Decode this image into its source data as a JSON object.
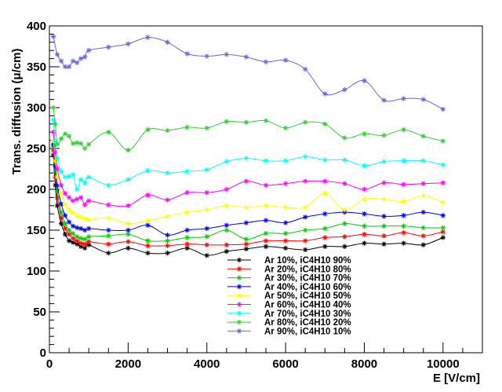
{
  "chart_data": {
    "type": "line",
    "xlabel": "E [V/cm]",
    "ylabel": "Trans. diffusion (μ/cm)",
    "xlim": [
      0,
      11000
    ],
    "ylim": [
      0,
      400
    ],
    "x_ticks": [
      0,
      2000,
      4000,
      6000,
      8000,
      10000
    ],
    "y_ticks": [
      0,
      50,
      100,
      150,
      200,
      250,
      300,
      350,
      400
    ],
    "grid": false,
    "legend_position": "bottom-center",
    "series": [
      {
        "name": "Ar 10%, iC4H10 90%",
        "color": "#000000",
        "points": [
          [
            100,
            242
          ],
          [
            150,
            205
          ],
          [
            200,
            180
          ],
          [
            300,
            158
          ],
          [
            400,
            145
          ],
          [
            500,
            137
          ],
          [
            600,
            135
          ],
          [
            700,
            133
          ],
          [
            800,
            130
          ],
          [
            900,
            128
          ],
          [
            1000,
            132
          ],
          [
            1500,
            122
          ],
          [
            2000,
            128
          ],
          [
            2500,
            122
          ],
          [
            3000,
            122
          ],
          [
            3500,
            128
          ],
          [
            4000,
            119
          ],
          [
            4500,
            124
          ],
          [
            5000,
            127
          ],
          [
            5500,
            130
          ],
          [
            6000,
            128
          ],
          [
            6500,
            126
          ],
          [
            7000,
            130
          ],
          [
            7500,
            130
          ],
          [
            8000,
            134
          ],
          [
            8500,
            133
          ],
          [
            9000,
            134
          ],
          [
            9500,
            132
          ],
          [
            10000,
            141
          ]
        ]
      },
      {
        "name": "Ar 20%, iC4H10 80%",
        "color": "#ff0000",
        "points": [
          [
            100,
            248
          ],
          [
            150,
            215
          ],
          [
            200,
            190
          ],
          [
            300,
            165
          ],
          [
            400,
            152
          ],
          [
            500,
            145
          ],
          [
            600,
            140
          ],
          [
            700,
            137
          ],
          [
            800,
            134
          ],
          [
            900,
            133
          ],
          [
            1000,
            136
          ],
          [
            1500,
            133
          ],
          [
            2000,
            136
          ],
          [
            2500,
            131
          ],
          [
            3000,
            131
          ],
          [
            3500,
            133
          ],
          [
            4000,
            132
          ],
          [
            4500,
            132
          ],
          [
            5000,
            133
          ],
          [
            5500,
            137
          ],
          [
            6000,
            137
          ],
          [
            6500,
            137
          ],
          [
            7000,
            141
          ],
          [
            7500,
            142
          ],
          [
            8000,
            145
          ],
          [
            8500,
            143
          ],
          [
            9000,
            147
          ],
          [
            9500,
            143
          ],
          [
            10000,
            148
          ]
        ]
      },
      {
        "name": "Ar 30%, iC4H10 70%",
        "color": "#00cc00",
        "points": [
          [
            100,
            252
          ],
          [
            150,
            222
          ],
          [
            200,
            197
          ],
          [
            300,
            172
          ],
          [
            400,
            158
          ],
          [
            500,
            150
          ],
          [
            600,
            146
          ],
          [
            700,
            142
          ],
          [
            800,
            140
          ],
          [
            900,
            139
          ],
          [
            1000,
            142
          ],
          [
            1500,
            143
          ],
          [
            2000,
            145
          ],
          [
            2500,
            137
          ],
          [
            3000,
            137
          ],
          [
            3500,
            141
          ],
          [
            4000,
            142
          ],
          [
            4500,
            150
          ],
          [
            5000,
            139
          ],
          [
            5500,
            146
          ],
          [
            6000,
            146
          ],
          [
            6500,
            150
          ],
          [
            7000,
            152
          ],
          [
            7500,
            158
          ],
          [
            8000,
            155
          ],
          [
            8500,
            155
          ],
          [
            9000,
            155
          ],
          [
            9500,
            153
          ],
          [
            10000,
            153
          ]
        ]
      },
      {
        "name": "Ar 40%, iC4H10 60%",
        "color": "#0000ee",
        "points": [
          [
            100,
            255
          ],
          [
            150,
            228
          ],
          [
            200,
            205
          ],
          [
            300,
            182
          ],
          [
            400,
            168
          ],
          [
            500,
            160
          ],
          [
            600,
            155
          ],
          [
            700,
            153
          ],
          [
            800,
            152
          ],
          [
            900,
            150
          ],
          [
            1000,
            152
          ],
          [
            1500,
            150
          ],
          [
            2000,
            150
          ],
          [
            2500,
            156
          ],
          [
            3000,
            144
          ],
          [
            3500,
            150
          ],
          [
            4000,
            152
          ],
          [
            4500,
            156
          ],
          [
            5000,
            159
          ],
          [
            5500,
            162
          ],
          [
            6000,
            159
          ],
          [
            6500,
            166
          ],
          [
            7000,
            170
          ],
          [
            7500,
            172
          ],
          [
            8000,
            170
          ],
          [
            8500,
            167
          ],
          [
            9000,
            168
          ],
          [
            9500,
            172
          ],
          [
            10000,
            168
          ]
        ]
      },
      {
        "name": "Ar 50%, iC4H10 50%",
        "color": "#ffff00",
        "points": [
          [
            100,
            260
          ],
          [
            150,
            235
          ],
          [
            200,
            215
          ],
          [
            300,
            195
          ],
          [
            400,
            182
          ],
          [
            500,
            175
          ],
          [
            600,
            172
          ],
          [
            700,
            168
          ],
          [
            800,
            166
          ],
          [
            900,
            164
          ],
          [
            1000,
            163
          ],
          [
            1500,
            165
          ],
          [
            2000,
            158
          ],
          [
            2500,
            162
          ],
          [
            3000,
            167
          ],
          [
            3500,
            172
          ],
          [
            4000,
            175
          ],
          [
            4500,
            180
          ],
          [
            5000,
            178
          ],
          [
            5500,
            180
          ],
          [
            6000,
            178
          ],
          [
            6500,
            178
          ],
          [
            7000,
            195
          ],
          [
            7500,
            175
          ],
          [
            8000,
            188
          ],
          [
            8500,
            188
          ],
          [
            9000,
            185
          ],
          [
            9500,
            192
          ],
          [
            10000,
            184
          ]
        ]
      },
      {
        "name": "Ar 60%, iC4H10 40%",
        "color": "#ff00ff",
        "points": [
          [
            100,
            270
          ],
          [
            150,
            245
          ],
          [
            200,
            225
          ],
          [
            300,
            205
          ],
          [
            400,
            195
          ],
          [
            500,
            190
          ],
          [
            600,
            186
          ],
          [
            700,
            188
          ],
          [
            800,
            190
          ],
          [
            900,
            181
          ],
          [
            1000,
            186
          ],
          [
            1500,
            181
          ],
          [
            2000,
            180
          ],
          [
            2500,
            193
          ],
          [
            3000,
            187
          ],
          [
            3500,
            196
          ],
          [
            4000,
            196
          ],
          [
            4500,
            200
          ],
          [
            5000,
            210
          ],
          [
            5500,
            205
          ],
          [
            6000,
            207
          ],
          [
            6500,
            210
          ],
          [
            7000,
            210
          ],
          [
            7500,
            207
          ],
          [
            8000,
            200
          ],
          [
            8500,
            208
          ],
          [
            9000,
            206
          ],
          [
            9500,
            207
          ],
          [
            10000,
            208
          ]
        ]
      },
      {
        "name": "Ar 70%, iC4H10 30%",
        "color": "#00ffff",
        "points": [
          [
            100,
            285
          ],
          [
            150,
            258
          ],
          [
            200,
            238
          ],
          [
            300,
            222
          ],
          [
            400,
            215
          ],
          [
            500,
            216
          ],
          [
            600,
            218
          ],
          [
            700,
            200
          ],
          [
            800,
            212
          ],
          [
            900,
            208
          ],
          [
            1000,
            215
          ],
          [
            1500,
            205
          ],
          [
            2000,
            212
          ],
          [
            2500,
            223
          ],
          [
            3000,
            220
          ],
          [
            3500,
            222
          ],
          [
            4000,
            224
          ],
          [
            4500,
            234
          ],
          [
            5000,
            238
          ],
          [
            5500,
            235
          ],
          [
            6000,
            235
          ],
          [
            6500,
            240
          ],
          [
            7000,
            236
          ],
          [
            7500,
            236
          ],
          [
            8000,
            229
          ],
          [
            8500,
            234
          ],
          [
            9000,
            235
          ],
          [
            9500,
            235
          ],
          [
            10000,
            230
          ]
        ]
      },
      {
        "name": "Ar 80%, iC4H10 20%",
        "color": "#33cc33",
        "points": [
          [
            100,
            300
          ],
          [
            150,
            280
          ],
          [
            200,
            255
          ],
          [
            300,
            262
          ],
          [
            400,
            268
          ],
          [
            500,
            265
          ],
          [
            600,
            256
          ],
          [
            700,
            257
          ],
          [
            800,
            256
          ],
          [
            900,
            250
          ],
          [
            1000,
            255
          ],
          [
            1500,
            270
          ],
          [
            2000,
            248
          ],
          [
            2500,
            273
          ],
          [
            3000,
            272
          ],
          [
            3500,
            276
          ],
          [
            4000,
            275
          ],
          [
            4500,
            283
          ],
          [
            5000,
            282
          ],
          [
            5500,
            284
          ],
          [
            6000,
            275
          ],
          [
            6500,
            282
          ],
          [
            7000,
            280
          ],
          [
            7500,
            263
          ],
          [
            8000,
            268
          ],
          [
            8500,
            266
          ],
          [
            9000,
            273
          ],
          [
            9500,
            265
          ],
          [
            10000,
            259
          ]
        ]
      },
      {
        "name": "Ar 90%, iC4H10 10%",
        "color": "#6666dd",
        "points": [
          [
            100,
            387
          ],
          [
            200,
            365
          ],
          [
            300,
            357
          ],
          [
            400,
            350
          ],
          [
            500,
            350
          ],
          [
            600,
            357
          ],
          [
            700,
            355
          ],
          [
            800,
            360
          ],
          [
            900,
            362
          ],
          [
            1000,
            370
          ],
          [
            1500,
            374
          ],
          [
            2000,
            378
          ],
          [
            2500,
            386
          ],
          [
            3000,
            380
          ],
          [
            3500,
            366
          ],
          [
            4000,
            363
          ],
          [
            4500,
            365
          ],
          [
            5000,
            362
          ],
          [
            5500,
            356
          ],
          [
            6000,
            358
          ],
          [
            6500,
            347
          ],
          [
            7000,
            317
          ],
          [
            7500,
            322
          ],
          [
            8000,
            333
          ],
          [
            8500,
            309
          ],
          [
            9000,
            311
          ],
          [
            9500,
            310
          ],
          [
            10000,
            298
          ]
        ]
      }
    ]
  }
}
